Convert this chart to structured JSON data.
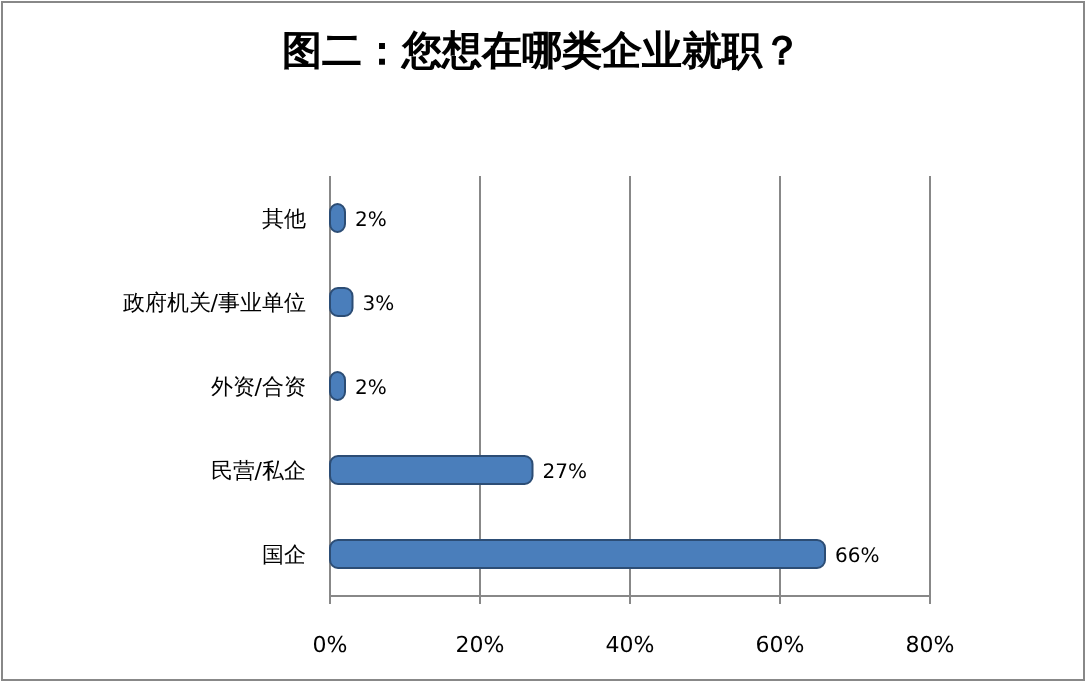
{
  "chart_data": {
    "type": "bar",
    "orientation": "horizontal",
    "title": "图二：您想在哪类企业就职？",
    "categories": [
      "其他",
      "政府机关/事业单位",
      "外资/合资",
      "民营/私企",
      "国企"
    ],
    "values": [
      2,
      3,
      2,
      27,
      66
    ],
    "value_labels": [
      "2%",
      "3%",
      "2%",
      "27%",
      "66%"
    ],
    "color": "#4a7ebb",
    "xlim": [
      0,
      80
    ],
    "xticks": [
      {
        "value": 0,
        "label": "0%"
      },
      {
        "value": 20,
        "label": "20%"
      },
      {
        "value": 40,
        "label": "40%"
      },
      {
        "value": 60,
        "label": "60%"
      },
      {
        "value": 80,
        "label": "80%"
      }
    ],
    "grid": "x"
  }
}
